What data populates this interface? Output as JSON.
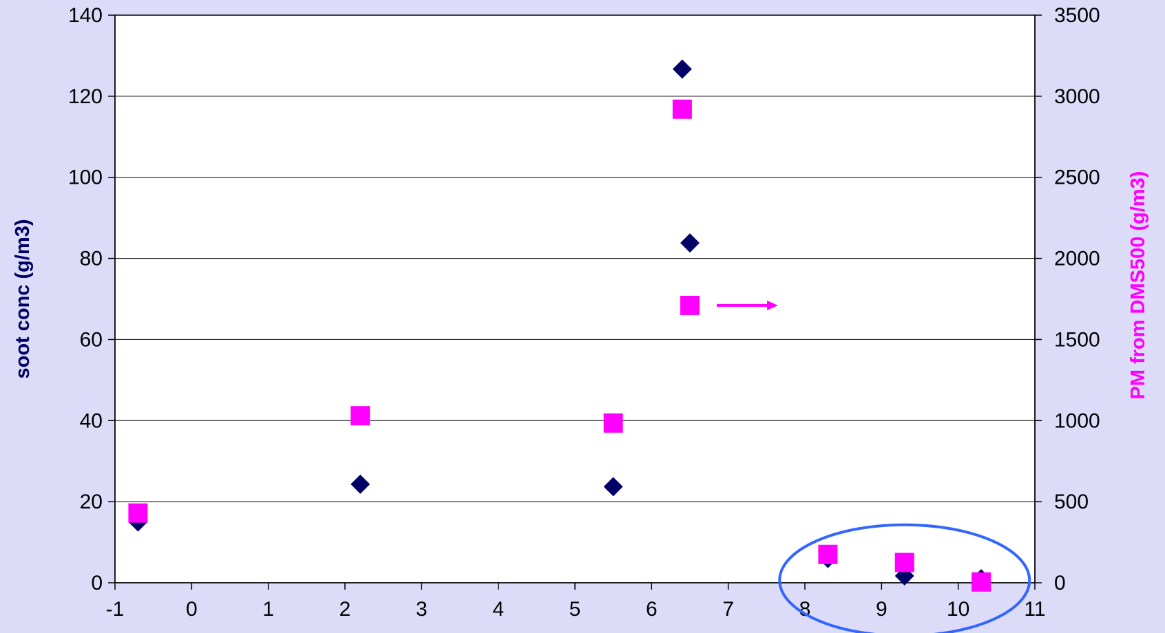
{
  "chart_data": {
    "type": "scatter",
    "title": "",
    "xlabel": "",
    "ylabel": "soot conc (g/m3)",
    "y2label": "PM from DMS500 (g/m3)",
    "xlim": [
      -1,
      11
    ],
    "ylim": [
      0,
      140
    ],
    "y2lim": [
      0,
      3500
    ],
    "x_ticks": [
      "-1",
      "0",
      "1",
      "2",
      "3",
      "4",
      "5",
      "6",
      "7",
      "8",
      "9",
      "10",
      "11"
    ],
    "y_ticks": [
      "0",
      "20",
      "40",
      "60",
      "80",
      "100",
      "120",
      "140"
    ],
    "y2_ticks": [
      "0",
      "500",
      "1000",
      "1500",
      "2000",
      "2500",
      "3000",
      "3500"
    ],
    "grid": "horizontal",
    "background_color": "#dcdcf8",
    "plot_color": "#ffffff",
    "series": [
      {
        "axis": "left",
        "marker": "diamond",
        "color": "#000066",
        "points": [
          {
            "x": -0.7,
            "y": 15
          },
          {
            "x": 2.2,
            "y": 24.3
          },
          {
            "x": 5.5,
            "y": 23.7
          },
          {
            "x": 6.4,
            "y": 126.7
          },
          {
            "x": 6.5,
            "y": 83.8
          },
          {
            "x": 8.3,
            "y": 6
          },
          {
            "x": 9.3,
            "y": 1.7
          },
          {
            "x": 10.3,
            "y": 1
          }
        ]
      },
      {
        "axis": "right",
        "marker": "square",
        "color": "#ff00ff",
        "points": [
          {
            "x": -0.7,
            "y": 430
          },
          {
            "x": 2.2,
            "y": 1030
          },
          {
            "x": 5.5,
            "y": 985
          },
          {
            "x": 6.4,
            "y": 2920
          },
          {
            "x": 6.5,
            "y": 1710
          },
          {
            "x": 8.3,
            "y": 175
          },
          {
            "x": 9.3,
            "y": 125
          },
          {
            "x": 10.3,
            "y": 5
          }
        ]
      }
    ],
    "annotations": [
      {
        "type": "arrow",
        "color": "#ff00ff",
        "direction": "right",
        "from": {
          "x": 6.85,
          "y2": 1710
        },
        "to": {
          "x": 7.65,
          "y2": 1710
        }
      },
      {
        "type": "ellipse",
        "color": "#3366ff",
        "cx": 9.3,
        "cy": 0.6,
        "rx": 1.63,
        "ry": 13.7
      }
    ]
  }
}
